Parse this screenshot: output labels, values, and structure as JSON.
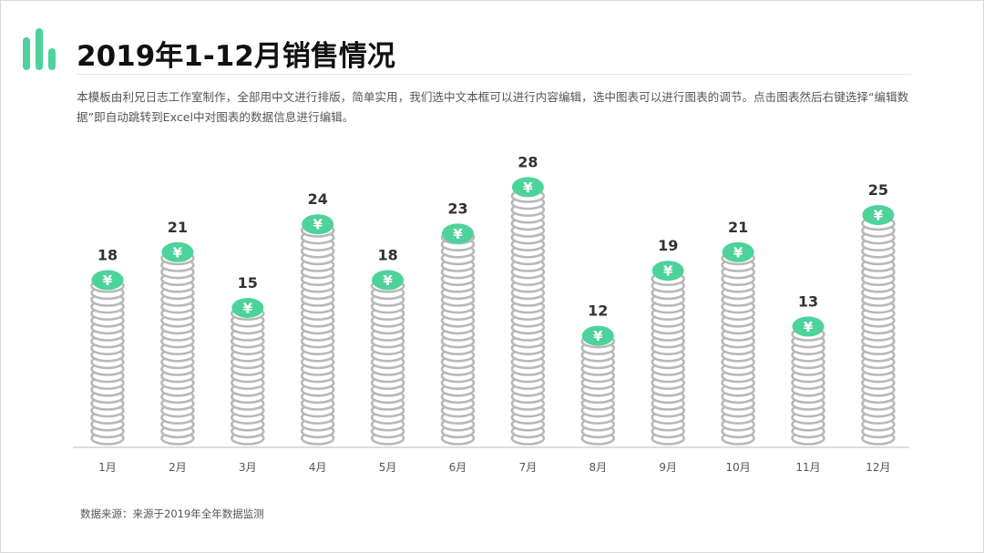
{
  "title": "2019年1-12月销售情况",
  "description": "本模板由利兄日志工作室制作，全部用中文进行排版，简单实用，我们选中文本框可以进行内容编辑，选中图表可以进行图表的调节。点击图表然后右键选择“编辑数据”即自动跳转到Excel中对图表的数据信息进行编辑。",
  "source": "数据来源：来源于2019年全年数据监测",
  "colors": {
    "accent": "#4dd29a",
    "coin_stroke": "#b8b8b8",
    "axis": "#d0d0d0",
    "value_label": "#333333"
  },
  "icons": {
    "logo": "bar-chart-icon",
    "coin": "yen-coin-icon"
  },
  "chart_data": {
    "type": "bar",
    "categories": [
      "1月",
      "2月",
      "3月",
      "4月",
      "5月",
      "6月",
      "7月",
      "8月",
      "9月",
      "10月",
      "11月",
      "12月"
    ],
    "values": [
      18,
      21,
      15,
      24,
      18,
      23,
      28,
      12,
      19,
      21,
      13,
      25
    ],
    "coin_symbol": "¥",
    "title": "",
    "xlabel": "",
    "ylabel": "",
    "ylim": [
      0,
      28
    ],
    "grid": false,
    "legend": "none"
  }
}
